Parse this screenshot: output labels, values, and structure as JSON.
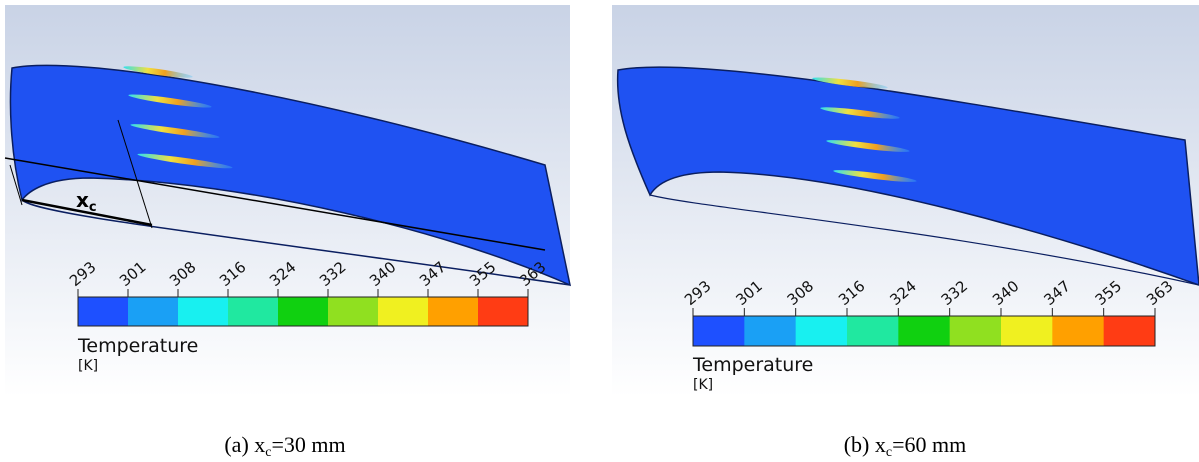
{
  "panels": [
    {
      "label": "x",
      "label_sub": "c",
      "legend": {
        "ticks": [
          "293",
          "301",
          "308",
          "316",
          "324",
          "332",
          "340",
          "347",
          "355",
          "363"
        ],
        "colors": [
          "#1e50ff",
          "#1aa0f5",
          "#18f0f0",
          "#20e8a0",
          "#10d010",
          "#90e020",
          "#f0f020",
          "#ffa000",
          "#ff3c14"
        ],
        "title": "Temperature",
        "unit": "[K]"
      },
      "caption": {
        "prefix": "(a) x",
        "sub": "c",
        "suffix": "=30 mm"
      }
    },
    {
      "legend": {
        "ticks": [
          "293",
          "301",
          "308",
          "316",
          "324",
          "332",
          "340",
          "347",
          "355",
          "363"
        ],
        "colors": [
          "#1e50ff",
          "#1aa0f5",
          "#18f0f0",
          "#20e8a0",
          "#10d010",
          "#90e020",
          "#f0f020",
          "#ffa000",
          "#ff3c14"
        ],
        "title": "Temperature",
        "unit": "[K]"
      },
      "caption": {
        "prefix": "(b) x",
        "sub": "c",
        "suffix": "=60 mm"
      }
    }
  ]
}
